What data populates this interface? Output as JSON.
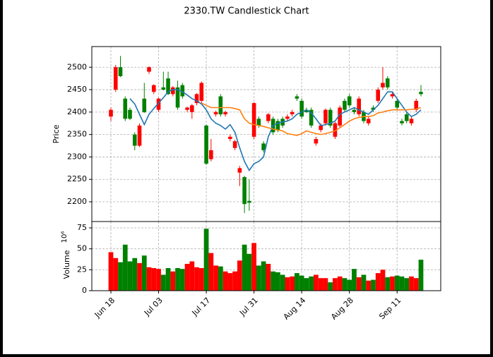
{
  "chart_data": {
    "type": "candlestick",
    "title": "2330.TW Candlestick Chart",
    "ylabel": "Price",
    "volume_label": "Volume",
    "volume_scale_label": "10⁶",
    "categories": [
      "Jun 18",
      null,
      null,
      null,
      null,
      null,
      null,
      null,
      null,
      null,
      "Jul 03",
      null,
      null,
      null,
      null,
      null,
      null,
      null,
      null,
      null,
      "Jul 17",
      null,
      null,
      null,
      null,
      null,
      null,
      null,
      null,
      null,
      "Jul 31",
      null,
      null,
      null,
      null,
      null,
      null,
      null,
      null,
      null,
      "Aug 14",
      null,
      null,
      null,
      null,
      null,
      null,
      null,
      null,
      null,
      "Aug 28",
      null,
      null,
      null,
      null,
      null,
      null,
      null,
      null,
      null,
      "Sep 11",
      null,
      null,
      null,
      null,
      null
    ],
    "open": [
      2405,
      2500,
      2480,
      2385,
      2385,
      2325,
      2370,
      2400,
      2500,
      2460,
      2430,
      2450,
      2440,
      2455,
      2410,
      2435,
      2410,
      2415,
      2440,
      2465,
      2285,
      2315,
      2400,
      2395,
      2400,
      2345,
      2335,
      2275,
      2195,
      2198,
      2420,
      2370,
      2315,
      2395,
      2355,
      2360,
      2370,
      2390,
      2400,
      2430,
      2390,
      2400,
      2370,
      2340,
      2370,
      2405,
      2370,
      2375,
      2410,
      2405,
      2415,
      2400,
      2430,
      2380,
      2385,
      2405,
      2450,
      2465,
      2455,
      2440,
      2410,
      2375,
      2380,
      2385,
      2425,
      2440
    ],
    "high": [
      2410,
      2505,
      2525,
      2435,
      2410,
      2355,
      2375,
      2465,
      2502,
      2462,
      2432,
      2490,
      2490,
      2458,
      2470,
      2465,
      2412,
      2418,
      2442,
      2468,
      2372,
      2340,
      2403,
      2440,
      2403,
      2350,
      2338,
      2280,
      2258,
      2250,
      2422,
      2390,
      2335,
      2398,
      2390,
      2385,
      2390,
      2395,
      2405,
      2440,
      2430,
      2410,
      2410,
      2345,
      2375,
      2408,
      2410,
      2378,
      2415,
      2430,
      2440,
      2410,
      2435,
      2405,
      2390,
      2415,
      2455,
      2500,
      2480,
      2445,
      2430,
      2385,
      2400,
      2390,
      2430,
      2460
    ],
    "low": [
      2380,
      2445,
      2478,
      2380,
      2382,
      2315,
      2322,
      2398,
      2485,
      2440,
      2400,
      2448,
      2438,
      2435,
      2405,
      2430,
      2400,
      2385,
      2415,
      2420,
      2282,
      2290,
      2390,
      2390,
      2390,
      2335,
      2315,
      2235,
      2175,
      2180,
      2340,
      2365,
      2310,
      2375,
      2350,
      2355,
      2365,
      2380,
      2390,
      2425,
      2385,
      2398,
      2365,
      2325,
      2355,
      2370,
      2365,
      2340,
      2365,
      2400,
      2410,
      2395,
      2390,
      2375,
      2370,
      2400,
      2420,
      2450,
      2450,
      2430,
      2405,
      2370,
      2375,
      2370,
      2400,
      2435
    ],
    "close": [
      2390,
      2450,
      2500,
      2430,
      2405,
      2350,
      2325,
      2430,
      2490,
      2445,
      2405,
      2455,
      2475,
      2440,
      2455,
      2460,
      2405,
      2400,
      2420,
      2425,
      2370,
      2295,
      2395,
      2435,
      2395,
      2340,
      2320,
      2265,
      2255,
      2202,
      2345,
      2385,
      2330,
      2380,
      2385,
      2380,
      2385,
      2385,
      2395,
      2435,
      2425,
      2405,
      2405,
      2330,
      2360,
      2375,
      2405,
      2345,
      2370,
      2425,
      2435,
      2405,
      2395,
      2400,
      2375,
      2410,
      2425,
      2455,
      2475,
      2435,
      2425,
      2380,
      2395,
      2375,
      2405,
      2445
    ],
    "volume": [
      46,
      39,
      34,
      55,
      35,
      39,
      33,
      42,
      28,
      27,
      26,
      19,
      27,
      23,
      27,
      26,
      32,
      35,
      28,
      27,
      74,
      45,
      30,
      29,
      23,
      21,
      23,
      36,
      55,
      44,
      57,
      30,
      35,
      32,
      23,
      22,
      19,
      16,
      17,
      21,
      18,
      15,
      17,
      19,
      15,
      15,
      10,
      15,
      17,
      15,
      13,
      26,
      16,
      19,
      12,
      13,
      21,
      25,
      16,
      17,
      18,
      17,
      15,
      17,
      15,
      37
    ],
    "up_color": "#008000",
    "down_color": "#ff0000",
    "moving_averages": [
      {
        "color": "#1f77b4",
        "values": [
          null,
          null,
          null,
          null,
          2430,
          2418,
          2395,
          2372,
          2395,
          2408,
          2420,
          2432,
          2445,
          2450,
          2450,
          2445,
          2438,
          2430,
          2425,
          2418,
          2405,
          2385,
          2375,
          2370,
          2362,
          2372,
          2355,
          2320,
          2290,
          2270,
          2285,
          2290,
          2300,
          2345,
          2370,
          2375,
          2378,
          2380,
          2385,
          2395,
          2400,
          2405,
          2398,
          2385,
          2370,
          2372,
          2375,
          2380,
          2395,
          2400,
          2405,
          2410,
          2405,
          2400,
          2395,
          2405,
          2415,
          2430,
          2445,
          2445,
          2430,
          2415,
          2400,
          2390,
          2395,
          2405
        ]
      },
      {
        "color": "#ff7f0e",
        "values": [
          null,
          null,
          null,
          null,
          null,
          null,
          null,
          null,
          null,
          null,
          null,
          null,
          null,
          null,
          null,
          null,
          null,
          null,
          null,
          2420,
          2415,
          2410,
          2410,
          2410,
          2410,
          2410,
          2408,
          2405,
          2385,
          2375,
          2372,
          2370,
          2368,
          2365,
          2362,
          2360,
          2358,
          2352,
          2350,
          2348,
          2352,
          2358,
          2355,
          2352,
          2350,
          2352,
          2355,
          2358,
          2365,
          2372,
          2380,
          2385,
          2388,
          2390,
          2390,
          2392,
          2398,
          2400,
          2403,
          2405,
          2405,
          2405,
          2405,
          2406,
          2407,
          2410
        ]
      }
    ],
    "ylim": [
      2156,
      2546
    ],
    "yticks": [
      2200,
      2250,
      2300,
      2350,
      2400,
      2450,
      2500
    ],
    "volume_ylim": [
      0,
      82.6
    ],
    "volume_yticks": [
      0,
      25,
      50,
      75
    ],
    "grid": true
  }
}
